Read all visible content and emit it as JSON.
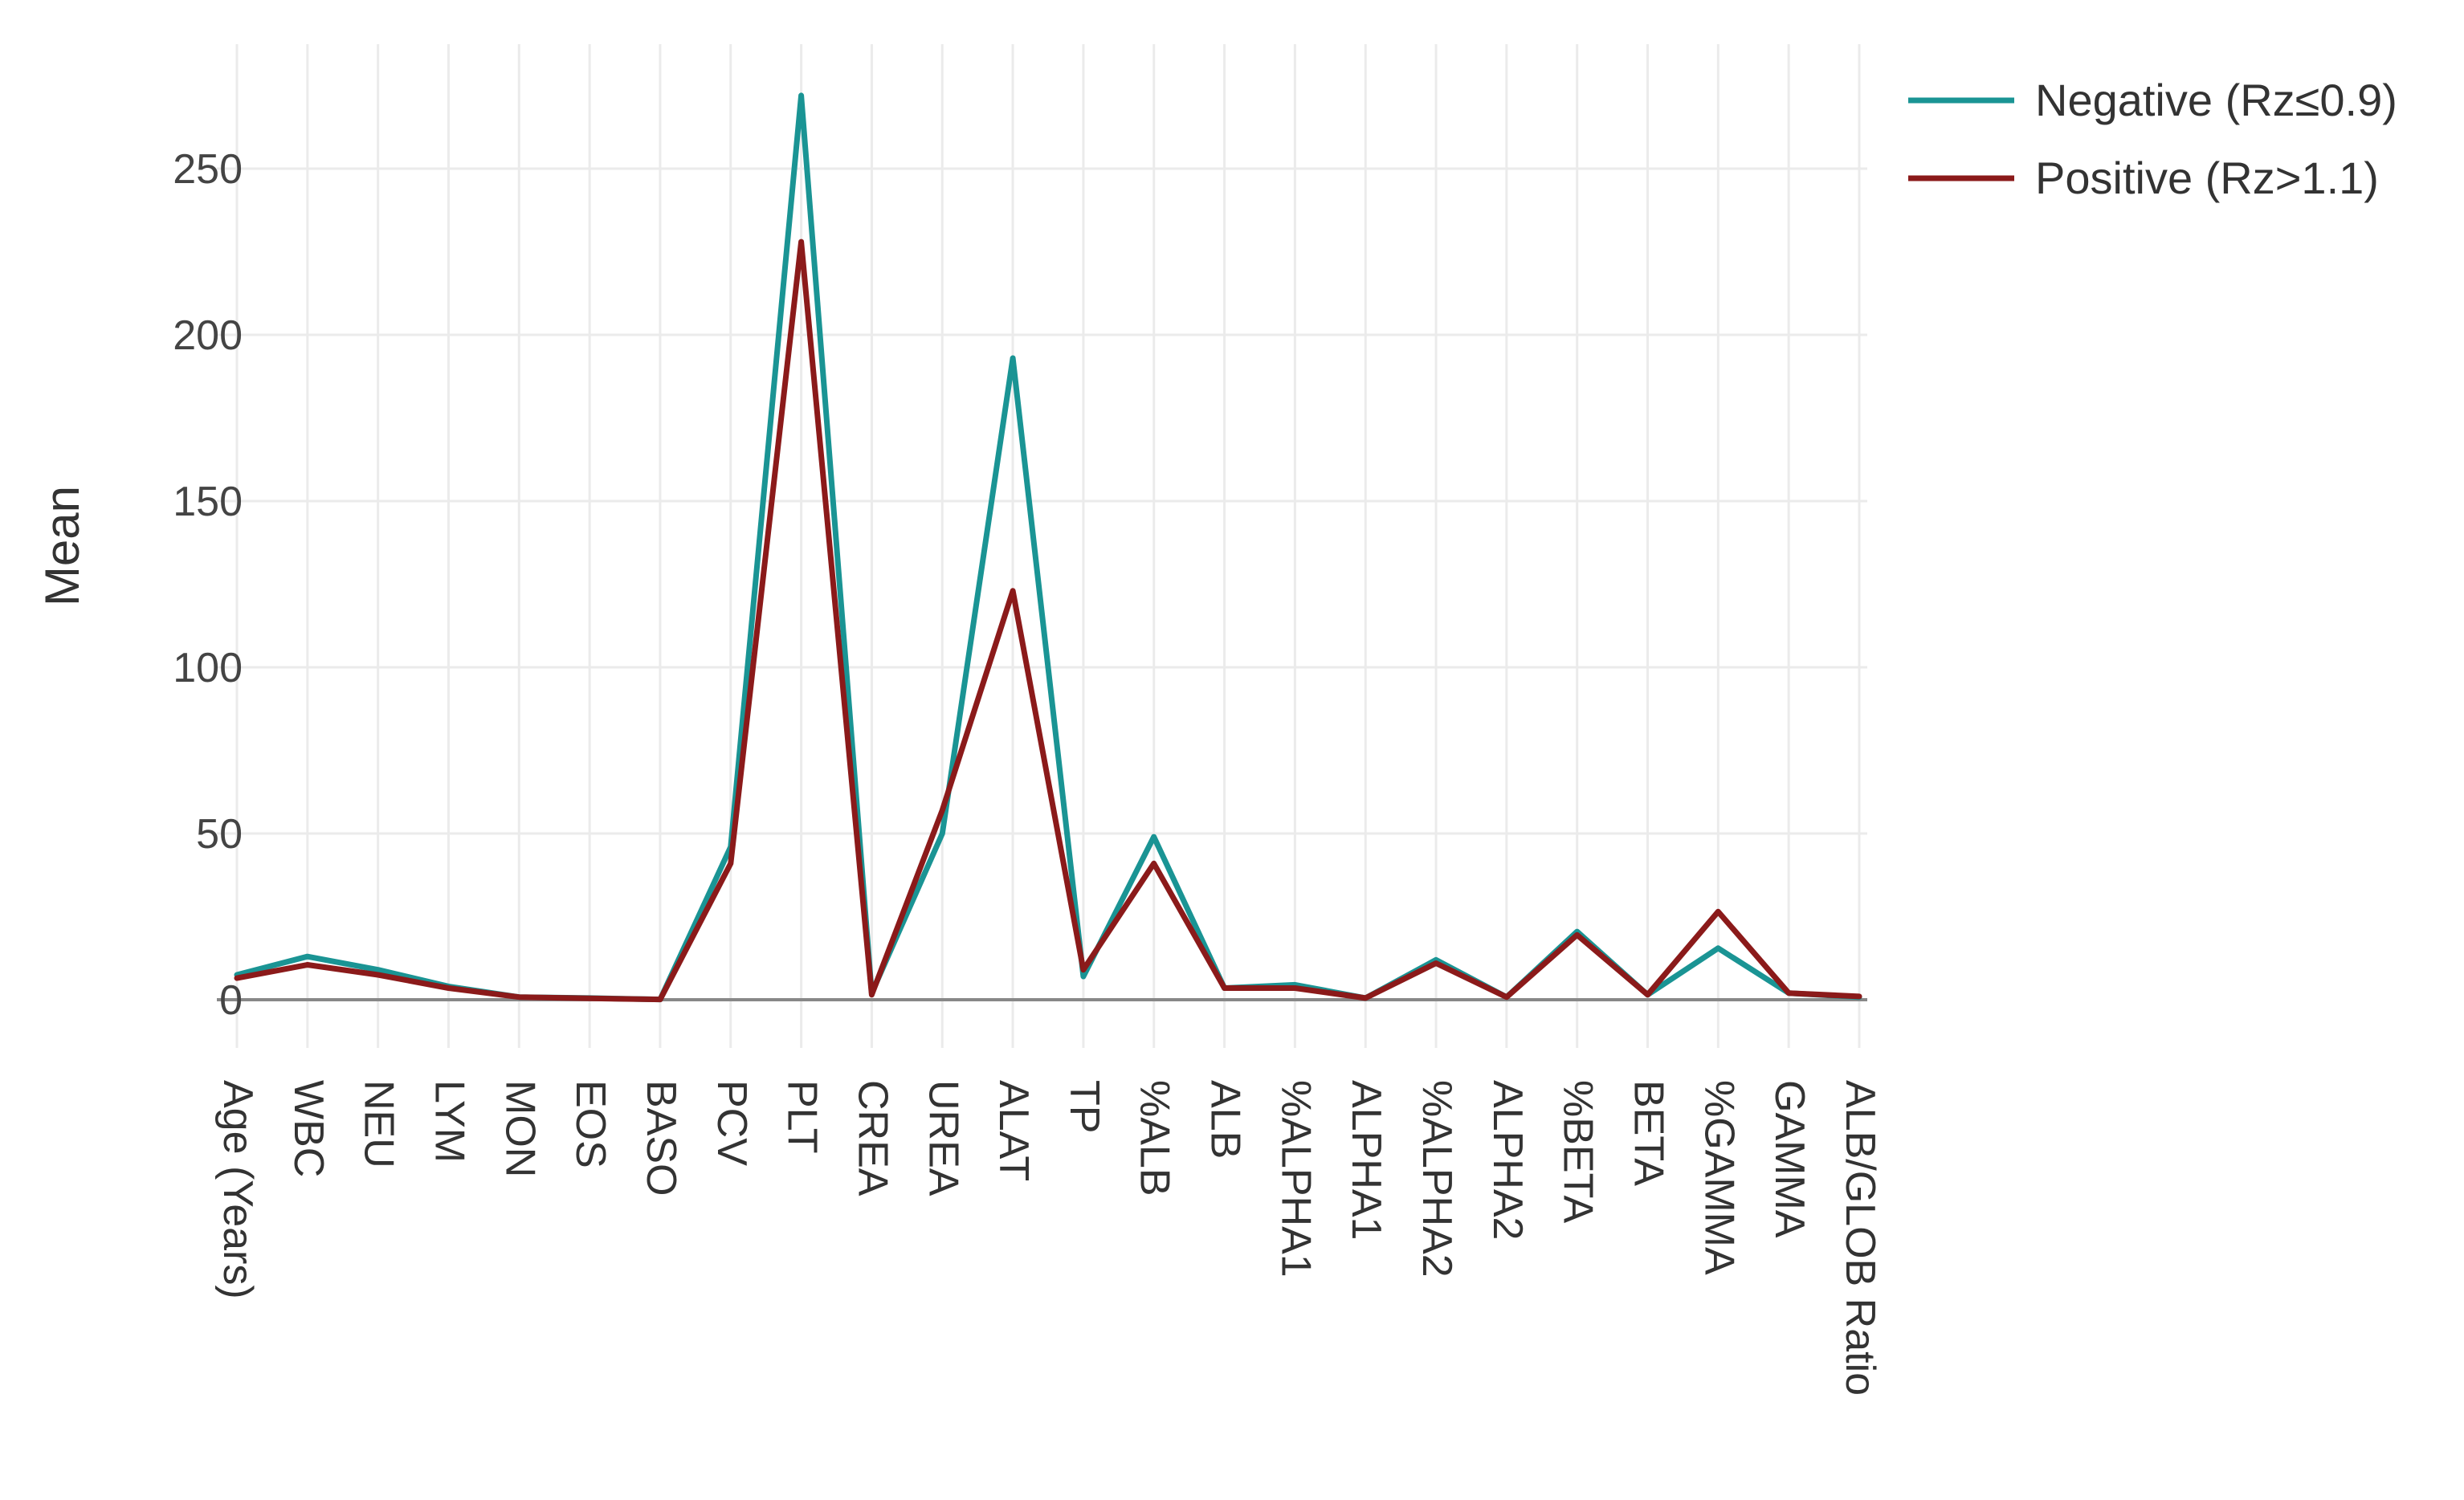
{
  "chart_data": {
    "type": "line",
    "title": "",
    "xlabel": "",
    "ylabel": "Mean",
    "ylim": [
      -5,
      275
    ],
    "yticks": [
      0,
      50,
      100,
      150,
      200,
      250
    ],
    "grid": true,
    "legend_position": "top-right",
    "categories": [
      "Age (Years)",
      "WBC",
      "NEU",
      "LYM",
      "MON",
      "EOS",
      "BASO",
      "PCV",
      "PLT",
      "CREA",
      "UREA",
      "ALAT",
      "TP",
      "%ALB",
      "ALB",
      "%ALPHA1",
      "ALPHA1",
      "%ALPHA2",
      "ALPHA2",
      "%BETA",
      "BETA",
      "%GAMMA",
      "GAMMA",
      "ALB/GLOB Ratio"
    ],
    "series": [
      {
        "name": "Negative (Rz≤0.9)",
        "color": "#1a9494",
        "values": [
          7.5,
          13,
          9,
          4,
          0.8,
          0.5,
          0.1,
          46,
          272,
          2,
          50,
          193,
          7,
          49,
          3.5,
          4.5,
          0.5,
          12,
          0.8,
          20.5,
          1.5,
          15.5,
          2,
          0.8
        ]
      },
      {
        "name": "Positive (Rz>1.1)",
        "color": "#8b1a1a",
        "values": [
          6.5,
          10.5,
          7.5,
          3.5,
          0.8,
          0.4,
          0.1,
          41,
          228,
          1.5,
          57,
          123,
          9,
          41,
          3.5,
          3.5,
          0.5,
          11,
          0.8,
          19.5,
          1.5,
          26.5,
          2,
          1
        ]
      }
    ]
  }
}
